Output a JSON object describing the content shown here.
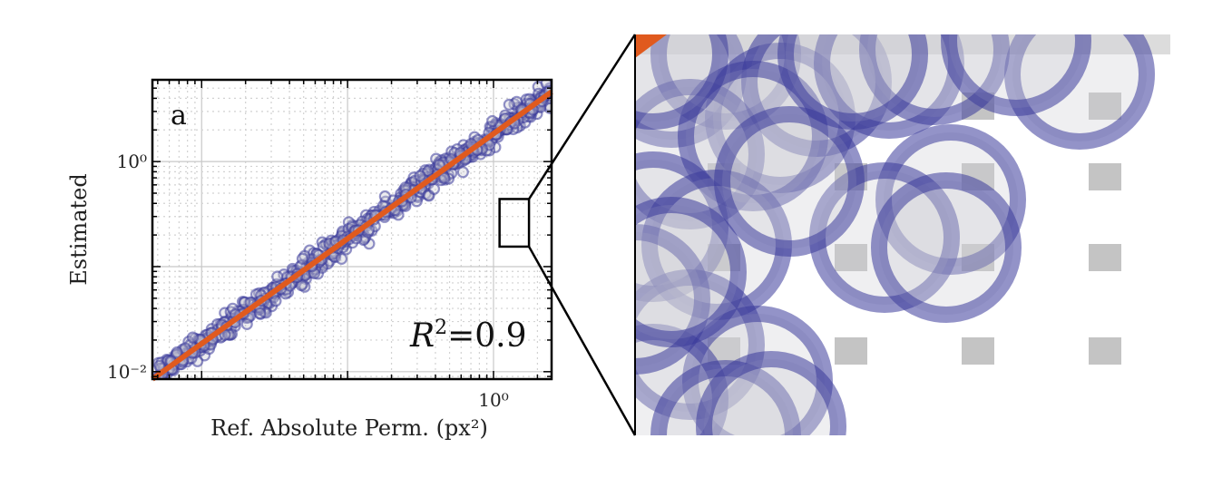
{
  "chart_data": [
    {
      "type": "scatter",
      "panel_label": "a",
      "xlabel": "Ref. Absolute Perm. (px²)",
      "ylabel": "Estimated",
      "x_scale": "log",
      "y_scale": "log",
      "xlim": [
        0.0046,
        2.5
      ],
      "ylim": [
        0.0085,
        6.0
      ],
      "x_ticks": [
        {
          "value": 1.0,
          "label": "10⁰"
        }
      ],
      "y_ticks": [
        {
          "value": 0.01,
          "label": "10⁻²"
        },
        {
          "value": 1.0,
          "label": "10⁰"
        }
      ],
      "grid": true,
      "annotation": {
        "label": "R",
        "sup": "2",
        "value": "=0.9"
      },
      "fit_line": {
        "x": [
          0.0046,
          2.5
        ],
        "y": [
          0.0085,
          4.6
        ],
        "color": "#e05a1e"
      },
      "marker_color": "#3a3a9a",
      "zoom_box": {
        "xlim": [
          1.1,
          1.75
        ],
        "ylim": [
          0.155,
          0.44
        ]
      }
    },
    {
      "type": "scatter",
      "description_role": "zoomed inset of panel a",
      "marker_color": "#3a3a9a",
      "fit_line_color": "#e05a1e"
    }
  ]
}
